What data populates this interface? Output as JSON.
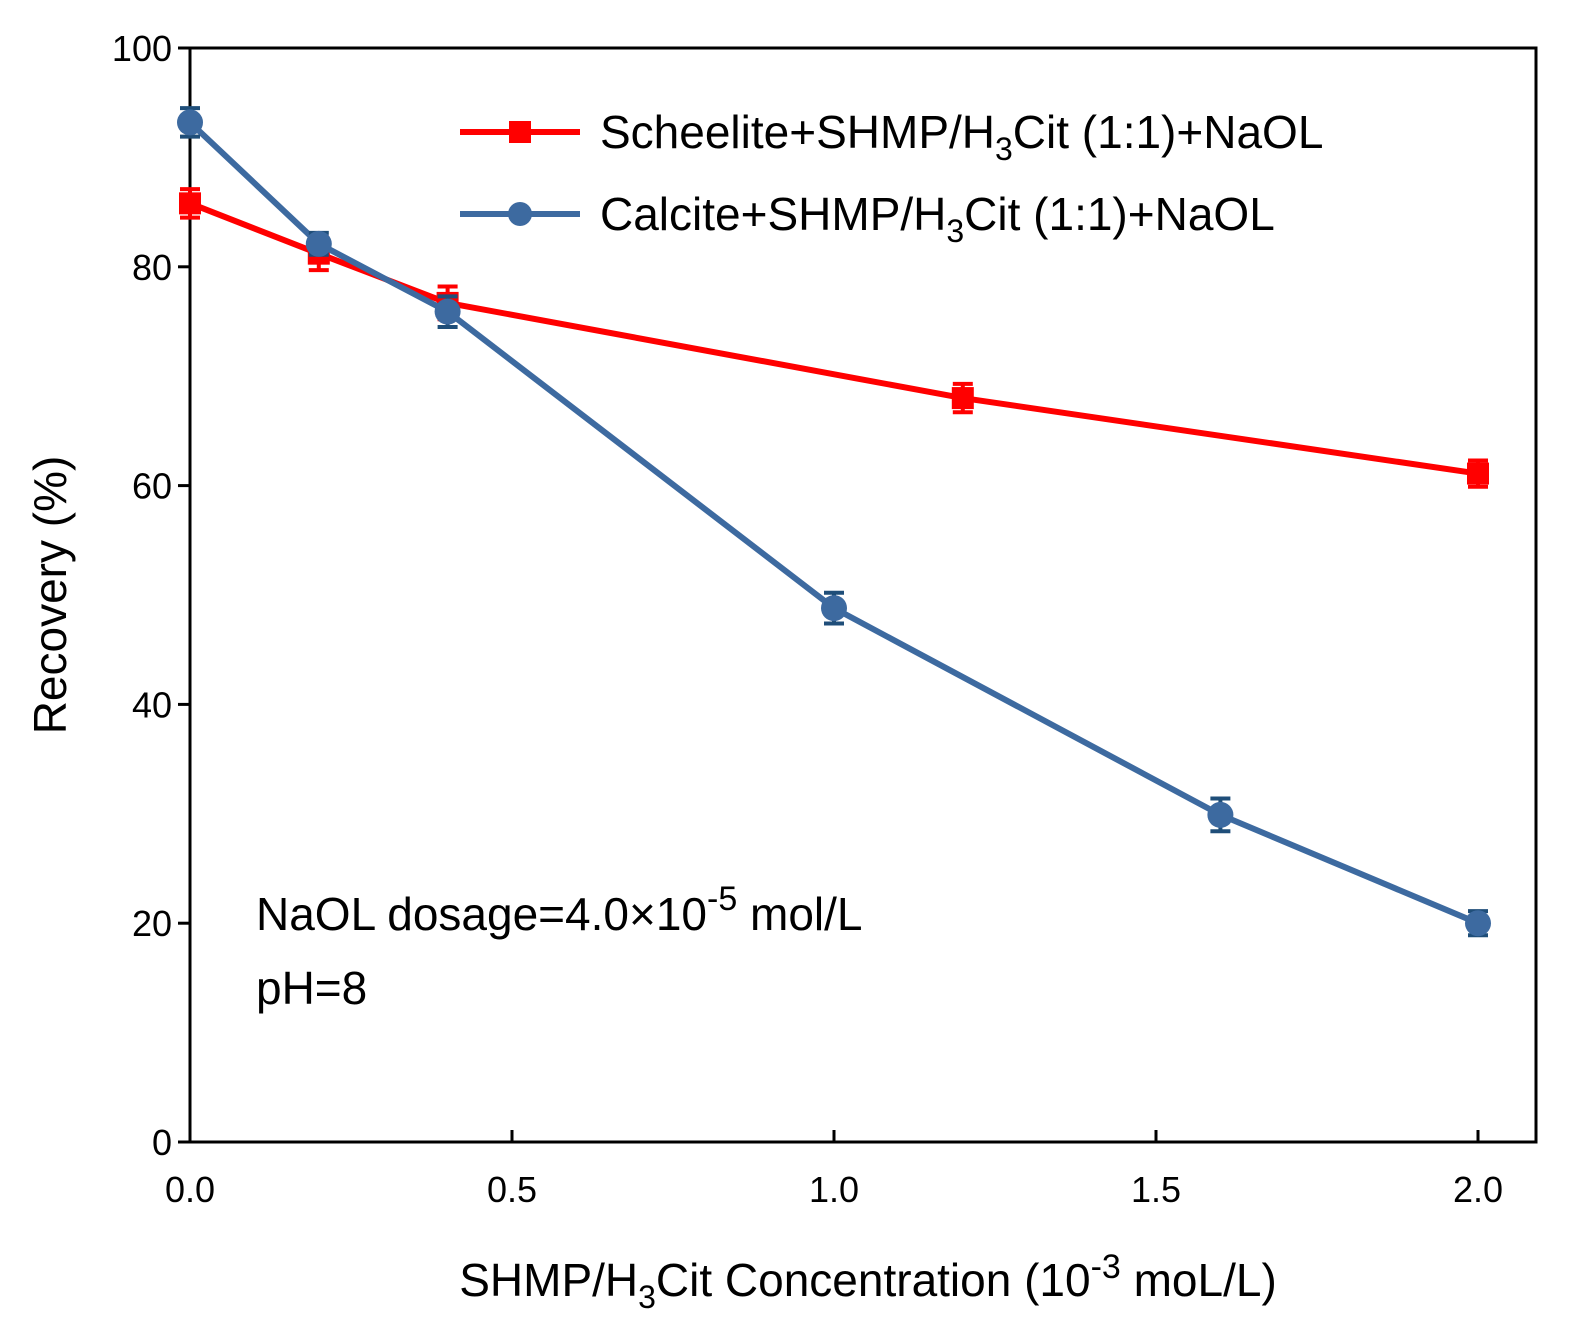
{
  "chart_data": {
    "type": "line",
    "title": "",
    "xlabel": {
      "prefix": "SHMP/H",
      "sub": "3",
      "mid": "Cit Concentration (10",
      "sup": "-3",
      "suffix": " moL/L)"
    },
    "ylabel": "Recovery (%)",
    "xlim": [
      0,
      2.0
    ],
    "ylim": [
      0,
      100
    ],
    "xticks": [
      0.0,
      0.5,
      1.0,
      1.5,
      2.0
    ],
    "xtick_labels": [
      "0.0",
      "0.5",
      "1.0",
      "1.5",
      "2.0"
    ],
    "yticks": [
      0,
      20,
      40,
      60,
      80,
      100
    ],
    "ytick_labels": [
      "0",
      "20",
      "40",
      "60",
      "80",
      "100"
    ],
    "legend_position": "top-right",
    "series": [
      {
        "name": "Scheelite+SHMP/H3Cit (1:1)+NaOL",
        "legend": {
          "prefix": "Scheelite+SHMP/H",
          "sub": "3",
          "suffix": "Cit (1:1)+NaOL"
        },
        "color": "#ff0000",
        "marker": "square",
        "x": [
          0.0,
          0.2,
          0.4,
          1.2,
          2.0
        ],
        "y": [
          85.8,
          81.2,
          76.7,
          68.0,
          61.1
        ],
        "err": [
          1.3,
          1.5,
          1.5,
          1.3,
          1.2
        ]
      },
      {
        "name": "Calcite+SHMP/H3Cit (1:1)+NaOL",
        "legend": {
          "prefix": "Calcite+SHMP/H",
          "sub": "3",
          "suffix": "Cit (1:1)+NaOL"
        },
        "color": "#3d6aa0",
        "errcolor": "#1f4e79",
        "marker": "circle",
        "x": [
          0.0,
          0.2,
          0.4,
          1.0,
          1.6,
          2.0
        ],
        "y": [
          93.2,
          82.1,
          75.9,
          48.8,
          29.9,
          20.0
        ],
        "err": [
          1.3,
          1.0,
          1.4,
          1.4,
          1.5,
          1.1
        ]
      }
    ],
    "annotations": [
      {
        "prefix": "NaOL dosage=4.0×10",
        "sup": "-5",
        "suffix": " mol/L"
      },
      {
        "prefix": "pH=8"
      }
    ]
  }
}
